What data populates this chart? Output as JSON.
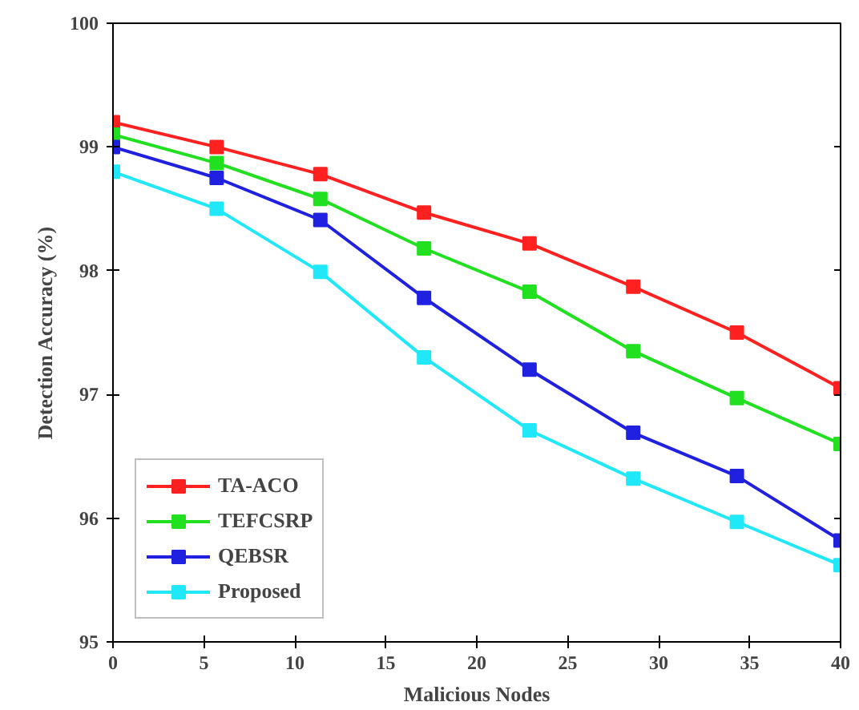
{
  "chart_data": {
    "type": "line",
    "xlabel": "Malicious Nodes",
    "ylabel": "Detection Accuracy (%)",
    "x": [
      0,
      5.7,
      11.4,
      17.1,
      22.9,
      28.6,
      34.3,
      40
    ],
    "series": [
      {
        "name": "TA-ACO",
        "color": "#ff2020",
        "values": [
          99.2,
          99.0,
          98.78,
          98.47,
          98.22,
          97.87,
          97.5,
          97.05
        ]
      },
      {
        "name": "TEFCSRP",
        "color": "#20e020",
        "values": [
          99.1,
          98.87,
          98.58,
          98.18,
          97.83,
          97.35,
          96.97,
          96.6
        ]
      },
      {
        "name": "QEBSR",
        "color": "#2020e0",
        "values": [
          99.0,
          98.75,
          98.41,
          97.78,
          97.2,
          96.69,
          96.34,
          95.82
        ]
      },
      {
        "name": "Proposed",
        "color": "#20e8f8",
        "values": [
          98.8,
          98.5,
          97.99,
          97.3,
          96.71,
          96.32,
          95.97,
          95.62
        ]
      }
    ],
    "xlim": [
      0,
      40
    ],
    "ylim": [
      95,
      100
    ],
    "xticks": [
      0,
      5,
      10,
      15,
      20,
      25,
      30,
      35,
      40
    ],
    "yticks": [
      95,
      96,
      97,
      98,
      99,
      100
    ],
    "grid": false,
    "legend": "bottom left",
    "marker": "square",
    "line_style": "solid"
  }
}
